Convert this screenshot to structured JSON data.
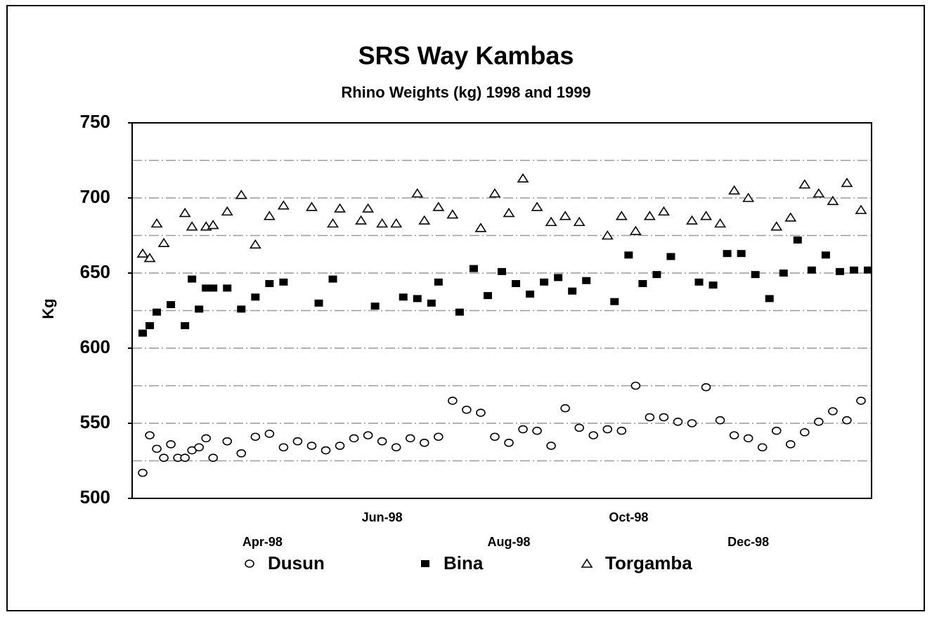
{
  "chart_data": {
    "type": "scatter",
    "title": "SRS Way Kambas",
    "subtitle": "Rhino Weights (kg) 1998 and 1999",
    "y_label": "Kg",
    "categories": [
      null,
      null,
      null,
      null,
      null,
      null,
      null,
      null,
      null,
      null,
      null,
      null,
      null,
      null,
      null,
      null,
      null,
      null,
      "Apr-98",
      null,
      null,
      null,
      null,
      null,
      null,
      null,
      null,
      null,
      null,
      null,
      null,
      null,
      null,
      null,
      null,
      "Jun-98",
      null,
      null,
      null,
      null,
      null,
      null,
      null,
      null,
      null,
      null,
      null,
      null,
      null,
      null,
      null,
      null,
      null,
      "Aug-98",
      null,
      null,
      null,
      null,
      null,
      null,
      null,
      null,
      null,
      null,
      null,
      null,
      null,
      null,
      null,
      null,
      "Oct-98",
      null,
      null,
      null,
      null,
      null,
      null,
      null,
      null,
      null,
      null,
      null,
      null,
      null,
      null,
      null,
      null,
      "Dec-98",
      null,
      null,
      null,
      null,
      null,
      null,
      null,
      null,
      null,
      null,
      null,
      null,
      null,
      null,
      null,
      null,
      null
    ],
    "series": [
      {
        "name": "Dusun",
        "marker": "circle",
        "color": "#000000",
        "values": [
          null,
          517,
          542,
          533,
          527,
          536,
          527,
          527,
          532,
          534,
          540,
          527,
          null,
          538,
          null,
          530,
          null,
          541,
          null,
          543,
          null,
          534,
          null,
          538,
          null,
          535,
          null,
          532,
          null,
          535,
          null,
          540,
          null,
          542,
          null,
          538,
          null,
          534,
          null,
          540,
          null,
          537,
          null,
          541,
          null,
          565,
          null,
          559,
          null,
          557,
          null,
          541,
          null,
          537,
          null,
          546,
          null,
          545,
          null,
          535,
          null,
          560,
          null,
          547,
          null,
          542,
          null,
          546,
          null,
          545,
          null,
          575,
          null,
          554,
          null,
          554,
          null,
          551,
          null,
          550,
          null,
          574,
          null,
          552,
          null,
          542,
          null,
          540,
          null,
          534,
          null,
          545,
          null,
          536,
          null,
          544,
          null,
          551,
          null,
          558,
          null,
          552,
          null,
          565,
          null
        ]
      },
      {
        "name": "Bina",
        "marker": "square",
        "color": "#000000",
        "values": [
          null,
          610,
          615,
          624,
          null,
          629,
          null,
          615,
          646,
          626,
          640,
          640,
          null,
          640,
          null,
          626,
          null,
          634,
          null,
          643,
          null,
          644,
          null,
          null,
          null,
          null,
          630,
          null,
          646,
          null,
          null,
          null,
          null,
          null,
          628,
          null,
          null,
          null,
          634,
          null,
          633,
          null,
          630,
          644,
          null,
          null,
          624,
          null,
          653,
          null,
          635,
          null,
          651,
          null,
          643,
          null,
          636,
          null,
          644,
          null,
          647,
          null,
          638,
          null,
          645,
          null,
          null,
          null,
          631,
          null,
          662,
          null,
          643,
          null,
          649,
          null,
          661,
          null,
          null,
          null,
          644,
          null,
          642,
          null,
          663,
          null,
          663,
          null,
          649,
          null,
          633,
          null,
          650,
          null,
          672,
          null,
          652,
          null,
          662,
          null,
          651,
          null,
          652,
          null,
          652
        ]
      },
      {
        "name": "Torgamba",
        "marker": "triangle",
        "color": "#000000",
        "values": [
          null,
          663,
          660,
          683,
          670,
          null,
          null,
          690,
          681,
          null,
          681,
          682,
          null,
          691,
          null,
          702,
          null,
          669,
          null,
          688,
          null,
          695,
          null,
          null,
          null,
          694,
          null,
          null,
          683,
          693,
          null,
          null,
          685,
          693,
          null,
          683,
          null,
          683,
          null,
          null,
          703,
          685,
          null,
          694,
          null,
          689,
          null,
          null,
          null,
          680,
          null,
          703,
          null,
          690,
          null,
          713,
          null,
          694,
          null,
          684,
          null,
          688,
          null,
          684,
          null,
          null,
          null,
          675,
          null,
          688,
          null,
          678,
          null,
          688,
          null,
          691,
          null,
          null,
          null,
          685,
          null,
          688,
          null,
          683,
          null,
          705,
          null,
          700,
          null,
          null,
          null,
          681,
          null,
          687,
          null,
          709,
          null,
          703,
          null,
          698,
          null,
          710,
          null,
          692,
          null
        ]
      }
    ],
    "ylim": [
      500,
      750
    ],
    "yticks": [
      500,
      550,
      600,
      650,
      700,
      750
    ],
    "grid_lines": [
      525,
      550,
      575,
      600,
      625,
      650,
      675,
      700,
      725
    ],
    "grid": true,
    "legend": "bottom"
  }
}
